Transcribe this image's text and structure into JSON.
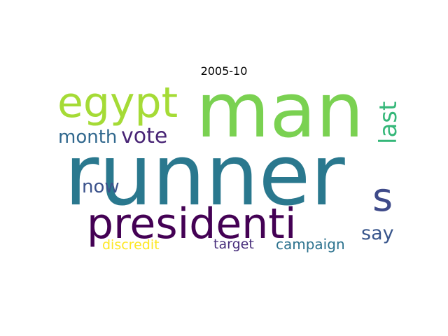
{
  "title": "2005-10",
  "words": [
    {
      "text": "man",
      "color": "#7ad151"
    },
    {
      "text": "runner",
      "color": "#2a788e"
    },
    {
      "text": "egypt",
      "color": "#a5db36"
    },
    {
      "text": "presidenti",
      "color": "#440154"
    },
    {
      "text": "last",
      "color": "#35b779"
    },
    {
      "text": "vote",
      "color": "#482475"
    },
    {
      "text": "month",
      "color": "#31688e"
    },
    {
      "text": "s",
      "color": "#3e4a89"
    },
    {
      "text": "now",
      "color": "#3b528b"
    },
    {
      "text": "say",
      "color": "#39568c"
    },
    {
      "text": "discredit",
      "color": "#fde725"
    },
    {
      "text": "target",
      "color": "#472d7b"
    },
    {
      "text": "campaign",
      "color": "#2c728e"
    }
  ]
}
